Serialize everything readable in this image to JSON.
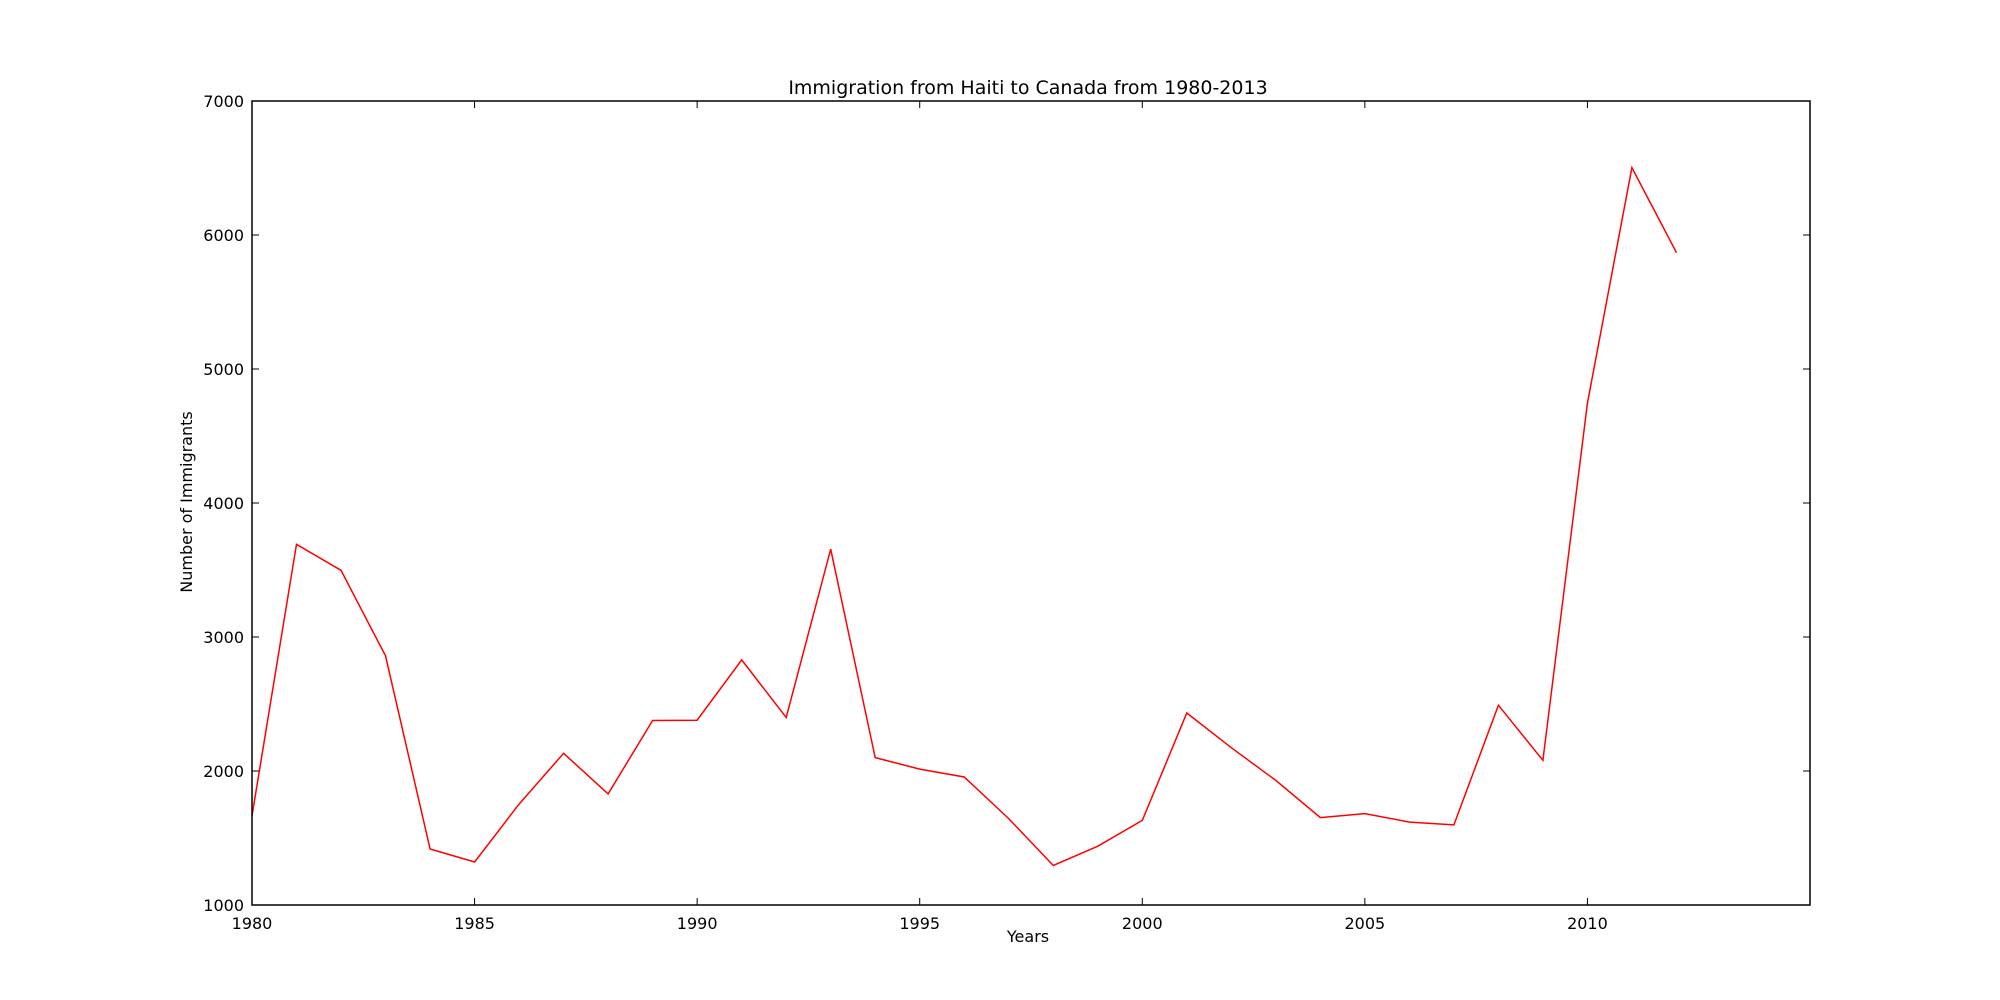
{
  "chart_data": {
    "type": "line",
    "title": "Immigration from Haiti to Canada from 1980-2013",
    "xlabel": "Years",
    "ylabel": "Number of Immigrants",
    "xlim": [
      1980,
      2015
    ],
    "ylim": [
      1000,
      7000
    ],
    "xticks": [
      1980,
      1985,
      1990,
      1995,
      2000,
      2005,
      2010
    ],
    "yticks": [
      1000,
      2000,
      3000,
      4000,
      5000,
      6000,
      7000
    ],
    "grid": false,
    "series": [
      {
        "color": "#ff0000",
        "x": [
          1980,
          1981,
          1982,
          1983,
          1984,
          1985,
          1986,
          1987,
          1988,
          1989,
          1990,
          1991,
          1992,
          1993,
          1994,
          1995,
          1996,
          1997,
          1998,
          1999,
          2000,
          2001,
          2002,
          2003,
          2004,
          2005,
          2006,
          2007,
          2008,
          2009,
          2010,
          2011,
          2012
        ],
        "values": [
          1666,
          3692,
          3498,
          2860,
          1418,
          1321,
          1753,
          2132,
          1829,
          2377,
          2379,
          2829,
          2399,
          3655,
          2100,
          2014,
          1955,
          1645,
          1295,
          1439,
          1631,
          2433,
          2174,
          1930,
          1652,
          1682,
          1619,
          1598,
          2491,
          2080,
          4744,
          6503,
          5868
        ]
      }
    ]
  }
}
